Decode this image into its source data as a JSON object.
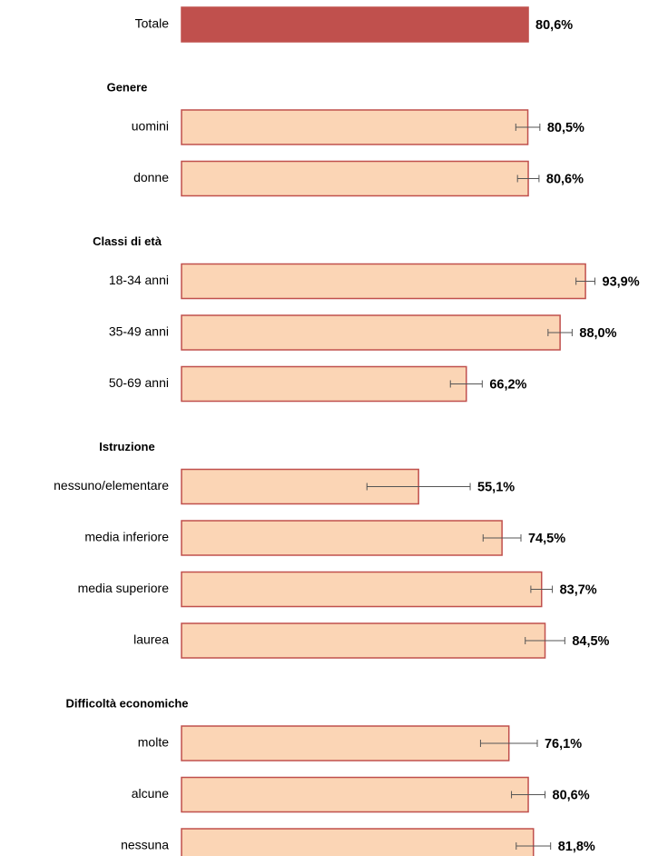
{
  "chart_data": {
    "type": "bar",
    "total": {
      "category": "Totale",
      "value": 80.6,
      "value_label": "80,6%",
      "color": "#c0504d"
    },
    "color": "#fbd5b5",
    "edge_color": "#c0504d",
    "error_color": "#555555",
    "groups": [
      {
        "name": "Genere",
        "categories": [
          "uomini",
          "donne"
        ],
        "values": [
          80.5,
          80.6
        ],
        "value_labels": [
          "80,5%",
          "80,6%"
        ],
        "errors": [
          2.8,
          2.5
        ]
      },
      {
        "name": "Classi di età",
        "categories": [
          "18-34 anni",
          "35-49 anni",
          "50-69 anni"
        ],
        "values": [
          93.9,
          88.0,
          66.2
        ],
        "value_labels": [
          "93,9%",
          "88,0%",
          "66,2%"
        ],
        "errors": [
          2.2,
          2.8,
          3.7
        ]
      },
      {
        "name": "Istruzione",
        "categories": [
          "nessuno/elementare",
          "media inferiore",
          "media superiore",
          "laurea"
        ],
        "values": [
          55.1,
          74.5,
          83.7,
          84.5
        ],
        "value_labels": [
          "55,1%",
          "74,5%",
          "83,7%",
          "84,5%"
        ],
        "errors": [
          12.0,
          4.4,
          2.5,
          4.6
        ]
      },
      {
        "name": "Difficoltà economiche",
        "categories": [
          "molte",
          "alcune",
          "nessuna"
        ],
        "values": [
          76.1,
          80.6,
          81.8
        ],
        "value_labels": [
          "76,1%",
          "80,6%",
          "81,8%"
        ],
        "errors": [
          6.6,
          3.9,
          4.0
        ]
      }
    ]
  }
}
